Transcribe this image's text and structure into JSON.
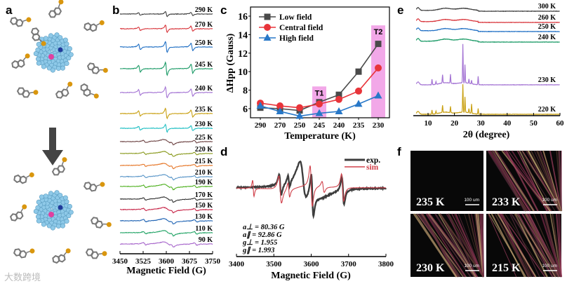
{
  "panels": {
    "a": {
      "label": "a"
    },
    "b": {
      "label": "b",
      "xlabel": "Magnetic Field (G)",
      "xticks": [
        "3450",
        "3525",
        "3600",
        "3675",
        "3750"
      ],
      "traces": [
        {
          "label": "290 K",
          "color": "#3d3d3d"
        },
        {
          "label": "270 K",
          "color": "#d8343a"
        },
        {
          "label": "250 K",
          "color": "#1f6fc4"
        },
        {
          "label": "245 K",
          "color": "#1a9a66"
        },
        {
          "label": "240 K",
          "color": "#a474d4"
        },
        {
          "label": "235 K",
          "color": "#c9a012"
        },
        {
          "label": "230 K",
          "color": "#22c0c4"
        },
        {
          "label": "225 K",
          "color": "#6e4444"
        },
        {
          "label": "220 K",
          "color": "#8c9c22"
        },
        {
          "label": "215 K",
          "color": "#e6782a"
        },
        {
          "label": "210 K",
          "color": "#5a96c8"
        },
        {
          "label": "190 K",
          "color": "#52b224"
        },
        {
          "label": "170 K",
          "color": "#333333"
        },
        {
          "label": "150 K",
          "color": "#c8284a"
        },
        {
          "label": "130 K",
          "color": "#2064b4"
        },
        {
          "label": "110 K",
          "color": "#22a466"
        },
        {
          "label": "90 K",
          "color": "#a868cc"
        }
      ]
    },
    "d": {
      "label": "d",
      "xlabel": "Magnetic Field (G)",
      "xticks": [
        "3400",
        "3500",
        "3600",
        "3700",
        "3800"
      ],
      "legend": [
        {
          "name": "exp.",
          "color": "#3d3d3d"
        },
        {
          "name": "sim",
          "color": "#d0404a"
        }
      ],
      "params": [
        "a⊥ = 80.36 G",
        "a∥ = 92.86 G",
        "g⊥ = 1.955",
        "g∥ = 1.993"
      ]
    },
    "e": {
      "label": "e",
      "xlabel": "2θ (degree)",
      "xticks": [
        "10",
        "20",
        "30",
        "40",
        "50",
        "60"
      ],
      "traces": [
        {
          "label": "300 K",
          "color": "#3d3d3d"
        },
        {
          "label": "260 K",
          "color": "#d8343a"
        },
        {
          "label": "250 K",
          "color": "#1f6fc4"
        },
        {
          "label": "240 K",
          "color": "#1a9a66"
        },
        {
          "label": "230 K",
          "color": "#a474d4"
        },
        {
          "label": "220 K",
          "color": "#c9a012"
        }
      ]
    },
    "f": {
      "label": "f",
      "images": [
        {
          "temp": "235 K",
          "scale": "100 um"
        },
        {
          "temp": "233 K",
          "scale": "100 um"
        },
        {
          "temp": "230 K",
          "scale": "100 um"
        },
        {
          "temp": "215 K",
          "scale": "100 um"
        }
      ]
    }
  },
  "watermark": "大数跨境",
  "chart_data": [
    {
      "panel": "c",
      "type": "line",
      "title": "",
      "xlabel": "Temperature (K)",
      "ylabel": "ΔHpp (Gauss)",
      "categories": [
        "290",
        "270",
        "250",
        "245",
        "240",
        "235",
        "230"
      ],
      "ylim": [
        5,
        17
      ],
      "yticks": [
        "6",
        "8",
        "10",
        "12",
        "14",
        "16"
      ],
      "legend_position": "top-left",
      "series": [
        {
          "name": "Low field",
          "color": "#4a4a4a",
          "marker": "square",
          "values": [
            6.1,
            6.0,
            5.8,
            6.7,
            7.5,
            10.0,
            13.0
          ]
        },
        {
          "name": "Central field",
          "color": "#e8343a",
          "marker": "circle",
          "values": [
            6.6,
            6.3,
            6.1,
            6.5,
            7.0,
            7.9,
            10.4
          ]
        },
        {
          "name": "High field",
          "color": "#2878c8",
          "marker": "triangle",
          "values": [
            6.3,
            5.7,
            5.2,
            5.5,
            5.7,
            6.5,
            7.4
          ]
        }
      ],
      "annotations": [
        {
          "text": "T1",
          "at": "245"
        },
        {
          "text": "T2",
          "at": "230"
        }
      ]
    }
  ]
}
